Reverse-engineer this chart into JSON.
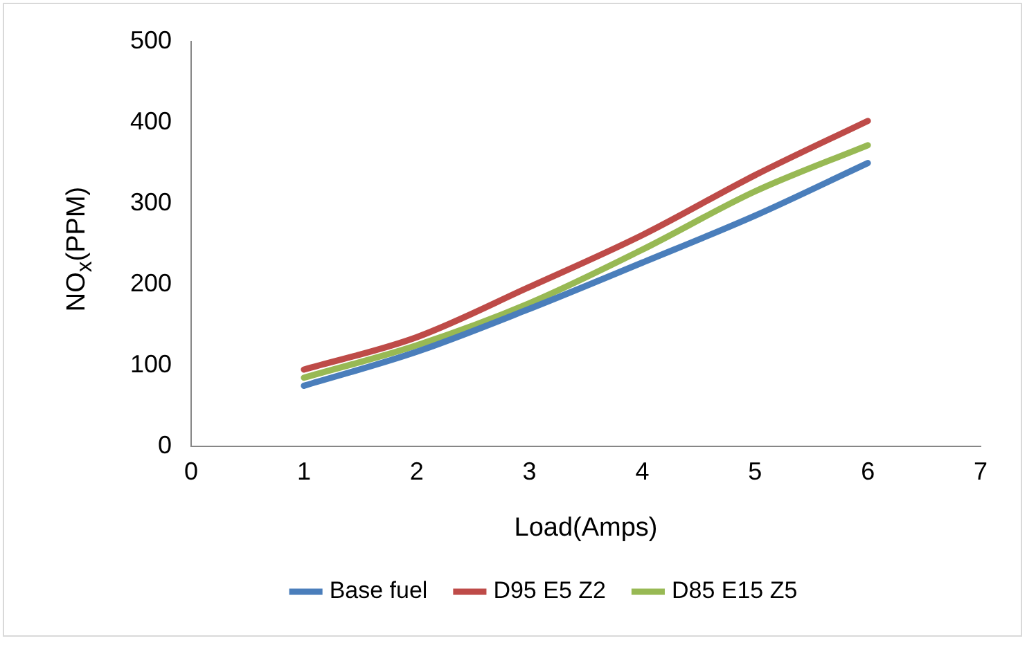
{
  "chart_data": {
    "type": "line",
    "xlabel": "Load(Amps)",
    "ylabel": "NO$_{x}$(PPM)",
    "x": [
      1,
      2,
      3,
      4,
      5,
      6
    ],
    "series": [
      {
        "name": "Base fuel",
        "color": "#4a7ebb",
        "values": [
          75,
          117,
          170,
          227,
          285,
          350
        ]
      },
      {
        "name": "D95 E5 Z2",
        "color": "#be4b48",
        "values": [
          95,
          135,
          197,
          261,
          335,
          402
        ]
      },
      {
        "name": "D85 E15 Z5",
        "color": "#98b954",
        "values": [
          85,
          125,
          177,
          243,
          315,
          372
        ]
      }
    ],
    "xlim": [
      0,
      7
    ],
    "xticks": [
      0,
      1,
      2,
      3,
      4,
      5,
      6,
      7
    ],
    "ylim": [
      0,
      500
    ],
    "yticks": [
      0,
      100,
      200,
      300,
      400,
      500
    ],
    "grid": false,
    "legend": "bottom",
    "marker": "none",
    "line_style": "solid"
  }
}
